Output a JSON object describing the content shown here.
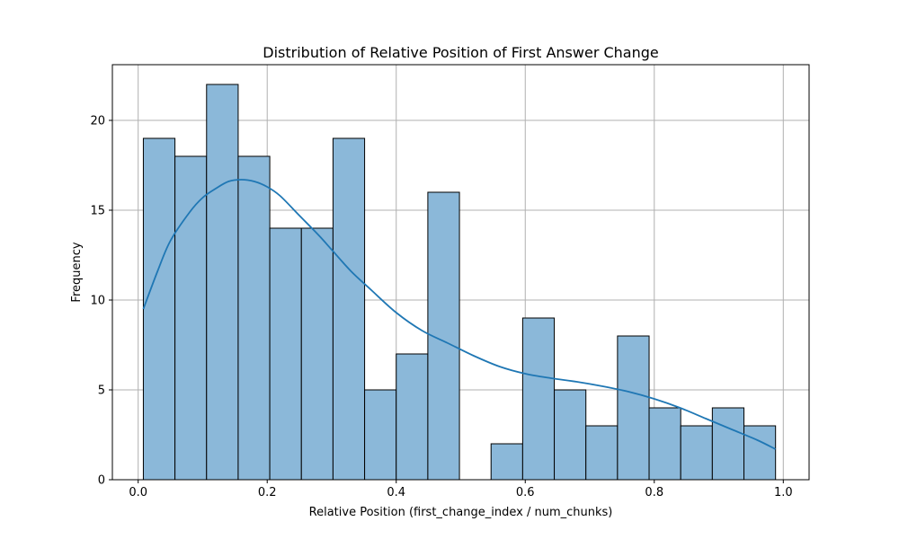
{
  "chart_data": {
    "type": "bar",
    "subtype": "histogram-with-kde",
    "title": "Distribution of Relative Position of First Answer Change",
    "xlabel": "Relative Position (first_change_index / num_chunks)",
    "ylabel": "Frequency",
    "xlim": [
      -0.04,
      1.04
    ],
    "ylim": [
      0,
      23.1
    ],
    "xticks": [
      "0.0",
      "0.2",
      "0.4",
      "0.6",
      "0.8",
      "1.0"
    ],
    "yticks": [
      "0",
      "5",
      "10",
      "15",
      "20"
    ],
    "grid": true,
    "bins": [
      {
        "x0": 0.008,
        "x1": 0.057,
        "count": 19
      },
      {
        "x0": 0.057,
        "x1": 0.106,
        "count": 18
      },
      {
        "x0": 0.106,
        "x1": 0.155,
        "count": 22
      },
      {
        "x0": 0.155,
        "x1": 0.204,
        "count": 18
      },
      {
        "x0": 0.204,
        "x1": 0.253,
        "count": 14
      },
      {
        "x0": 0.253,
        "x1": 0.302,
        "count": 14
      },
      {
        "x0": 0.302,
        "x1": 0.351,
        "count": 19
      },
      {
        "x0": 0.351,
        "x1": 0.4,
        "count": 5
      },
      {
        "x0": 0.4,
        "x1": 0.449,
        "count": 7
      },
      {
        "x0": 0.449,
        "x1": 0.498,
        "count": 16
      },
      {
        "x0": 0.498,
        "x1": 0.547,
        "count": 0
      },
      {
        "x0": 0.547,
        "x1": 0.596,
        "count": 2
      },
      {
        "x0": 0.596,
        "x1": 0.645,
        "count": 9
      },
      {
        "x0": 0.645,
        "x1": 0.694,
        "count": 5
      },
      {
        "x0": 0.694,
        "x1": 0.743,
        "count": 3
      },
      {
        "x0": 0.743,
        "x1": 0.792,
        "count": 8
      },
      {
        "x0": 0.792,
        "x1": 0.841,
        "count": 4
      },
      {
        "x0": 0.841,
        "x1": 0.89,
        "count": 3
      },
      {
        "x0": 0.89,
        "x1": 0.939,
        "count": 4
      },
      {
        "x0": 0.939,
        "x1": 0.988,
        "count": 3
      }
    ],
    "kde": {
      "x": [
        0.008,
        0.03,
        0.05,
        0.08,
        0.1,
        0.12,
        0.14,
        0.16,
        0.18,
        0.2,
        0.22,
        0.25,
        0.28,
        0.3,
        0.33,
        0.36,
        0.4,
        0.44,
        0.48,
        0.52,
        0.56,
        0.6,
        0.64,
        0.68,
        0.72,
        0.76,
        0.8,
        0.84,
        0.88,
        0.92,
        0.96,
        0.988
      ],
      "y": [
        9.5,
        11.6,
        13.3,
        14.9,
        15.7,
        16.2,
        16.6,
        16.7,
        16.6,
        16.3,
        15.8,
        14.7,
        13.6,
        12.8,
        11.6,
        10.6,
        9.3,
        8.3,
        7.6,
        6.9,
        6.3,
        5.9,
        5.65,
        5.45,
        5.2,
        4.9,
        4.5,
        4.0,
        3.4,
        2.8,
        2.2,
        1.7
      ]
    },
    "colors": {
      "bar_fill": "#8bb8d9",
      "bar_edge": "#000000",
      "kde_line": "#1f77b4",
      "grid": "#b0b0b0"
    }
  }
}
